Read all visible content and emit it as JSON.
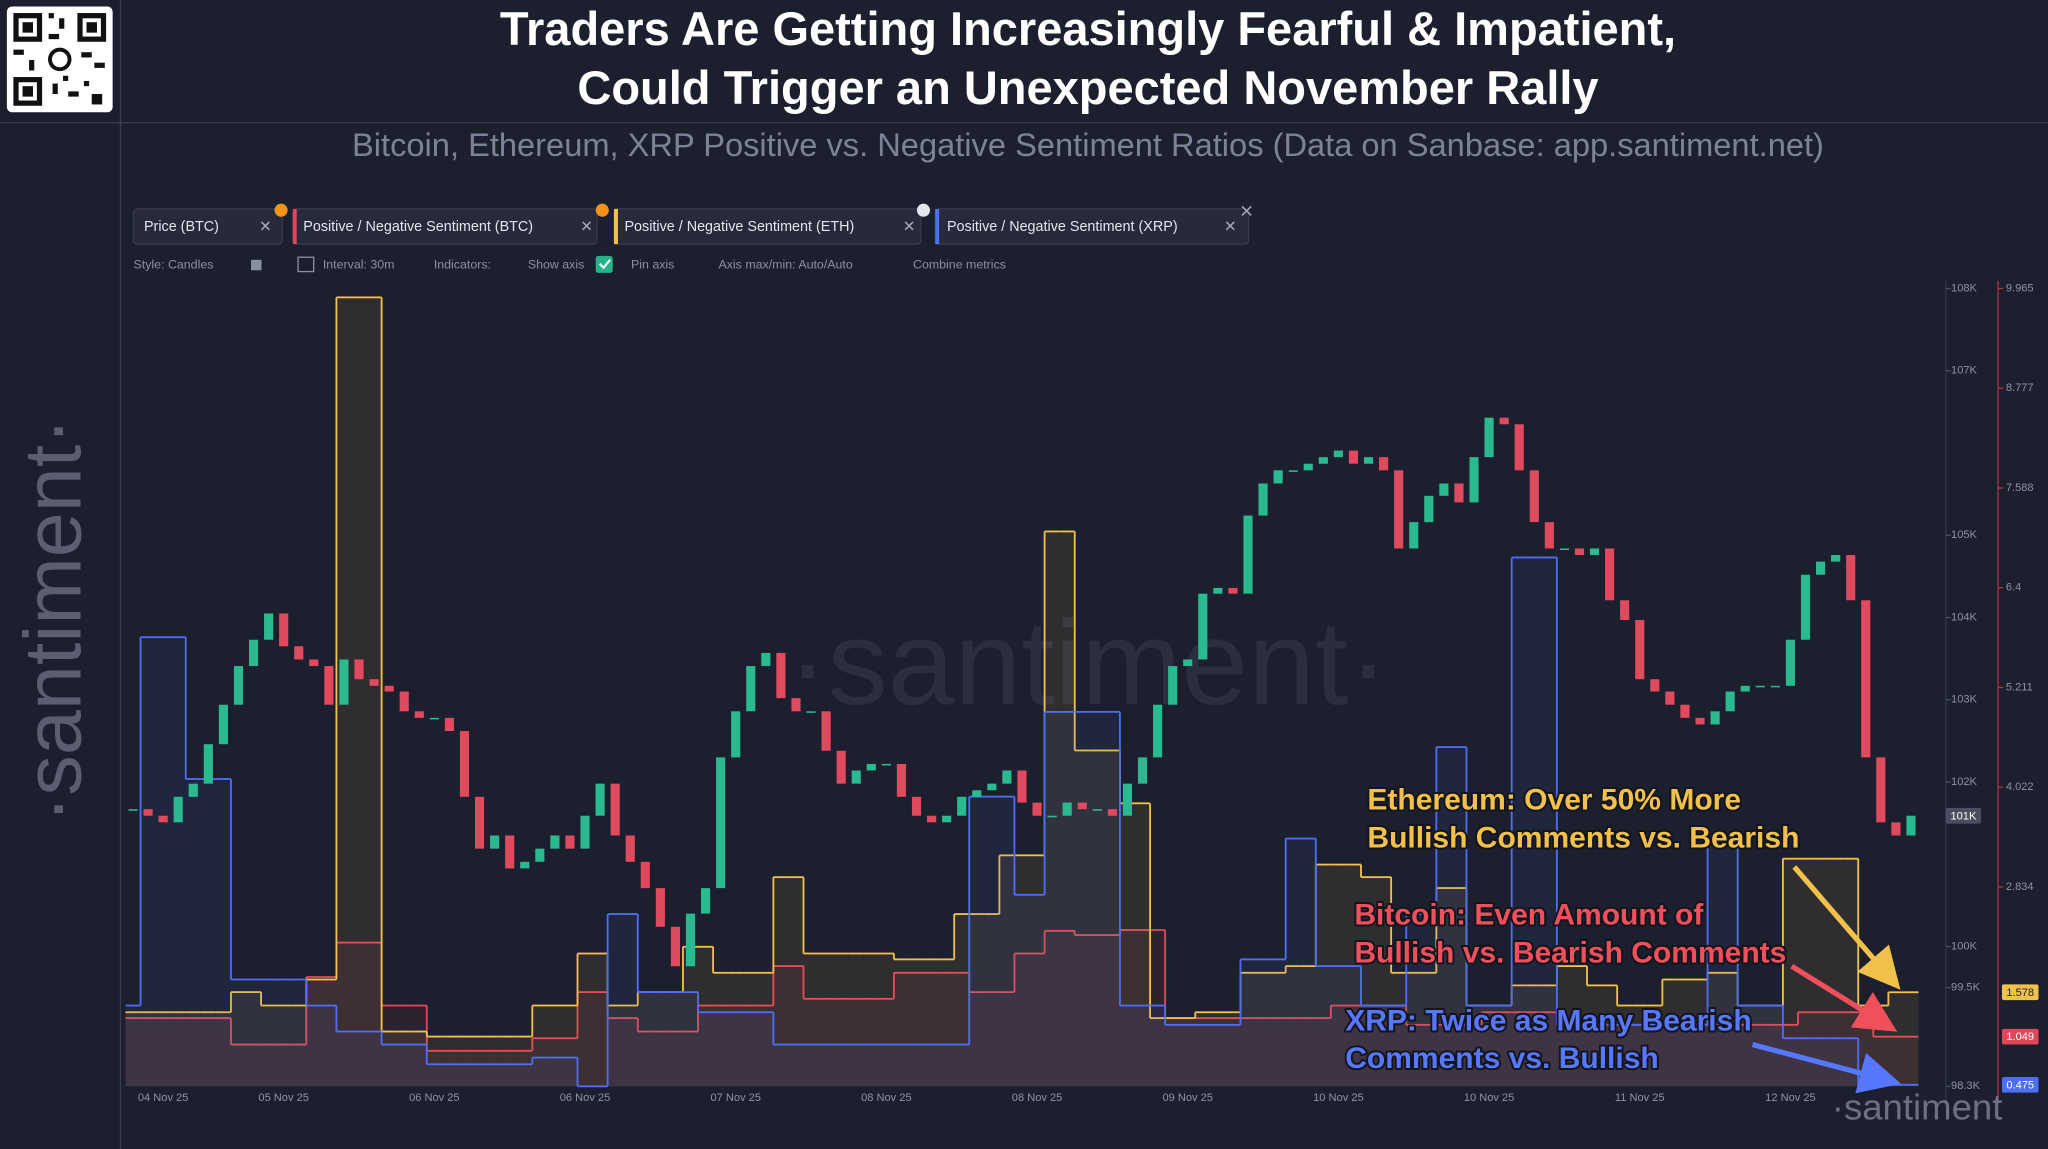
{
  "header": {
    "title": [
      "Traders Are Getting Increasingly Fearful & Impatient,",
      "Could Trigger an Unexpected November Rally"
    ],
    "subtitle": "Bitcoin, Ethereum, XRP Positive vs. Negative Sentiment Ratios (Data on Sanbase: app.santiment.net)"
  },
  "side_watermark": "·santiment·",
  "toolbar": [
    "Style: Candles",
    "Interval: 30m",
    "Indicators:",
    "Show axis",
    "Pin axis",
    "Axis max/min: Auto/Auto",
    "Combine metrics"
  ],
  "chart_data": {
    "type": "candlestick",
    "watermark": "·santiment·",
    "corner_watermark": "·santiment",
    "current_label": "101K",
    "categories": [
      null,
      null,
      "04 Nov 25",
      null,
      null,
      null,
      null,
      null,
      null,
      null,
      "05 Nov 25",
      null,
      null,
      null,
      null,
      null,
      null,
      null,
      null,
      null,
      "06 Nov 25",
      null,
      null,
      null,
      null,
      null,
      null,
      null,
      null,
      null,
      "06 Nov 25",
      null,
      null,
      null,
      null,
      null,
      null,
      null,
      null,
      null,
      "07 Nov 25",
      null,
      null,
      null,
      null,
      null,
      null,
      null,
      null,
      null,
      "08 Nov 25",
      null,
      null,
      null,
      null,
      null,
      null,
      null,
      null,
      null,
      "08 Nov 25",
      null,
      null,
      null,
      null,
      null,
      null,
      null,
      null,
      null,
      "09 Nov 25",
      null,
      null,
      null,
      null,
      null,
      null,
      null,
      null,
      null,
      "10 Nov 25",
      null,
      null,
      null,
      null,
      null,
      null,
      null,
      null,
      null,
      "10 Nov 25",
      null,
      null,
      null,
      null,
      null,
      null,
      null,
      null,
      null,
      "11 Nov 25",
      null,
      null,
      null,
      null,
      null,
      null,
      null,
      null,
      null,
      "12 Nov 25",
      null,
      null,
      null,
      null,
      null,
      null,
      null,
      null
    ],
    "ylim": [
      98300,
      108000
    ],
    "yticks": [
      {
        "value": 108000,
        "label": "108K"
      },
      {
        "value": 107000,
        "label": "107K"
      },
      {
        "value": 105000,
        "label": "105K"
      },
      {
        "value": 104000,
        "label": "104K"
      },
      {
        "value": 103000,
        "label": "103K"
      },
      {
        "value": 102000,
        "label": "102K"
      },
      {
        "value": 100000,
        "label": "100K"
      },
      {
        "value": 99500,
        "label": "99.5K"
      },
      {
        "value": 98300,
        "label": "98.3K"
      }
    ],
    "y2lim": [
      0.457,
      9.965
    ],
    "y2ticks": [
      9.965,
      8.777,
      7.588,
      6.4,
      5.211,
      4.022,
      2.834
    ],
    "series": [
      {
        "name": "Price (BTC)",
        "type": "candlestick",
        "color": "#2bb98f",
        "down_color": "#e04a5e",
        "values": [
          101670,
          101590,
          101510,
          101820,
          101980,
          102460,
          102940,
          103410,
          103730,
          104050,
          103650,
          103490,
          103410,
          102940,
          103490,
          103250,
          103170,
          103100,
          102860,
          102780,
          102780,
          102620,
          101820,
          101190,
          101350,
          100950,
          101030,
          101190,
          101350,
          101190,
          101590,
          101980,
          101350,
          101030,
          100710,
          100240,
          99760,
          100400,
          100710,
          102300,
          102860,
          103410,
          103570,
          103020,
          102860,
          102860,
          102380,
          101980,
          102140,
          102220,
          102220,
          101820,
          101590,
          101510,
          101590,
          101820,
          101900,
          101980,
          102140,
          101750,
          101590,
          101590,
          101750,
          101670,
          101670,
          101590,
          101980,
          102300,
          102940,
          103410,
          103490,
          104290,
          104360,
          104290,
          105240,
          105630,
          105790,
          105790,
          105870,
          105950,
          106030,
          105870,
          105950,
          105790,
          104840,
          105160,
          105480,
          105630,
          105400,
          105950,
          106430,
          106350,
          105790,
          105160,
          104840,
          104840,
          104760,
          104840,
          104210,
          103970,
          103250,
          103100,
          102940,
          102780,
          102700,
          102860,
          103100,
          103170,
          103170,
          103170,
          103730,
          104520,
          104680,
          104760,
          104210,
          102300,
          101510,
          101350,
          101590
        ]
      },
      {
        "name": "Positive / Negative Sentiment (BTC)",
        "type": "step",
        "axis": "y2",
        "color": "#e0475a",
        "values": [
          1.27,
          1.27,
          1.27,
          1.27,
          1.27,
          1.27,
          1.27,
          0.955,
          0.955,
          0.955,
          0.955,
          0.955,
          1.76,
          1.76,
          2.17,
          2.17,
          2.17,
          1.42,
          1.42,
          1.42,
          0.88,
          0.88,
          0.88,
          0.88,
          0.88,
          0.88,
          0.88,
          1.03,
          1.03,
          1.03,
          1.58,
          1.58,
          1.27,
          1.27,
          1.11,
          1.11,
          1.11,
          1.11,
          1.42,
          1.42,
          1.42,
          1.42,
          1.42,
          1.89,
          1.89,
          1.5,
          1.5,
          1.5,
          1.5,
          1.5,
          1.5,
          1.81,
          1.81,
          1.81,
          1.81,
          1.81,
          1.58,
          1.58,
          1.58,
          2.04,
          2.04,
          2.31,
          2.31,
          2.26,
          2.26,
          2.26,
          2.32,
          2.32,
          2.32,
          1.27,
          1.27,
          1.27,
          1.27,
          1.27,
          1.27,
          1.27,
          1.27,
          1.27,
          1.27,
          1.27,
          1.42,
          1.42,
          1.42,
          1.42,
          1.42,
          1.19,
          1.19,
          1.19,
          1.19,
          1.19,
          1.34,
          1.34,
          1.34,
          1.34,
          1.34,
          1.19,
          1.19,
          1.19,
          1.19,
          1.19,
          1.19,
          1.19,
          1.19,
          1.19,
          1.19,
          1.19,
          1.19,
          1.19,
          1.19,
          1.19,
          1.19,
          1.34,
          1.34,
          1.34,
          1.34,
          1.34,
          1.049,
          1.049,
          1.049
        ]
      },
      {
        "name": "Positive / Negative Sentiment (ETH)",
        "type": "step",
        "axis": "y2",
        "color": "#f2c14b",
        "values": [
          1.34,
          1.34,
          1.34,
          1.34,
          1.34,
          1.34,
          1.34,
          1.58,
          1.58,
          1.42,
          1.42,
          1.42,
          1.73,
          1.73,
          9.86,
          9.86,
          9.86,
          1.11,
          1.11,
          1.11,
          1.05,
          1.05,
          1.05,
          1.05,
          1.05,
          1.05,
          1.05,
          1.42,
          1.42,
          1.42,
          2.04,
          2.04,
          1.42,
          1.42,
          1.58,
          1.58,
          1.58,
          2.12,
          2.12,
          1.81,
          1.81,
          1.81,
          1.81,
          2.95,
          2.95,
          2.04,
          2.04,
          2.04,
          2.04,
          2.04,
          2.04,
          1.97,
          1.97,
          1.97,
          1.97,
          2.51,
          2.51,
          2.51,
          3.21,
          3.21,
          3.21,
          7.07,
          7.07,
          4.46,
          4.46,
          4.46,
          3.83,
          3.83,
          1.27,
          1.27,
          1.27,
          1.34,
          1.34,
          1.34,
          1.81,
          1.81,
          1.81,
          1.89,
          1.89,
          3.1,
          3.1,
          3.1,
          2.95,
          2.95,
          1.81,
          1.81,
          1.81,
          2.82,
          2.82,
          1.42,
          1.42,
          1.42,
          1.66,
          1.66,
          1.66,
          1.89,
          1.89,
          1.66,
          1.66,
          1.42,
          1.42,
          1.42,
          1.73,
          1.73,
          1.73,
          1.81,
          1.81,
          1.42,
          1.42,
          1.42,
          3.17,
          3.17,
          3.17,
          3.17,
          3.17,
          1.42,
          1.42,
          1.578,
          1.578
        ]
      },
      {
        "name": "Positive / Negative Sentiment (XRP)",
        "type": "step",
        "axis": "y2",
        "color": "#4d6ef5",
        "values": [
          1.42,
          5.81,
          5.81,
          5.81,
          4.12,
          4.12,
          4.12,
          1.73,
          1.73,
          1.73,
          1.73,
          1.73,
          1.42,
          1.42,
          1.11,
          1.11,
          1.11,
          0.955,
          0.955,
          0.955,
          0.72,
          0.72,
          0.72,
          0.72,
          0.72,
          0.72,
          0.72,
          0.8,
          0.8,
          0.8,
          0.457,
          0.457,
          2.51,
          2.51,
          1.58,
          1.58,
          1.58,
          1.58,
          1.34,
          1.34,
          1.34,
          1.34,
          1.34,
          0.955,
          0.955,
          0.955,
          0.955,
          0.955,
          0.955,
          0.955,
          0.955,
          0.955,
          0.955,
          0.955,
          0.955,
          0.955,
          3.91,
          3.91,
          3.91,
          2.74,
          2.74,
          4.92,
          4.92,
          4.92,
          4.92,
          4.92,
          1.42,
          1.42,
          1.42,
          1.19,
          1.19,
          1.19,
          1.19,
          1.19,
          1.97,
          1.97,
          1.97,
          3.41,
          3.41,
          1.89,
          1.89,
          1.89,
          1.42,
          1.42,
          1.42,
          2.51,
          2.51,
          4.5,
          4.5,
          1.42,
          1.42,
          1.42,
          6.76,
          6.76,
          6.76,
          1.19,
          1.19,
          1.19,
          1.19,
          1.19,
          1.19,
          1.19,
          1.19,
          1.19,
          1.19,
          3.41,
          3.41,
          1.42,
          1.42,
          1.42,
          1.03,
          1.03,
          1.03,
          1.03,
          1.03,
          0.475,
          0.475,
          0.475,
          0.475
        ]
      }
    ],
    "annotations": [
      {
        "lines": [
          "Ethereum: Over 50% More",
          "Bullish Comments vs. Bearish"
        ],
        "color": "#f2c14b"
      },
      {
        "lines": [
          "Bitcoin: Even Amount of",
          "Bullish vs. Bearish Comments"
        ],
        "color": "#f0505c"
      },
      {
        "lines": [
          "XRP: Twice as Many Bearish",
          "Comments vs. Bullish"
        ],
        "color": "#5777ff"
      }
    ]
  }
}
